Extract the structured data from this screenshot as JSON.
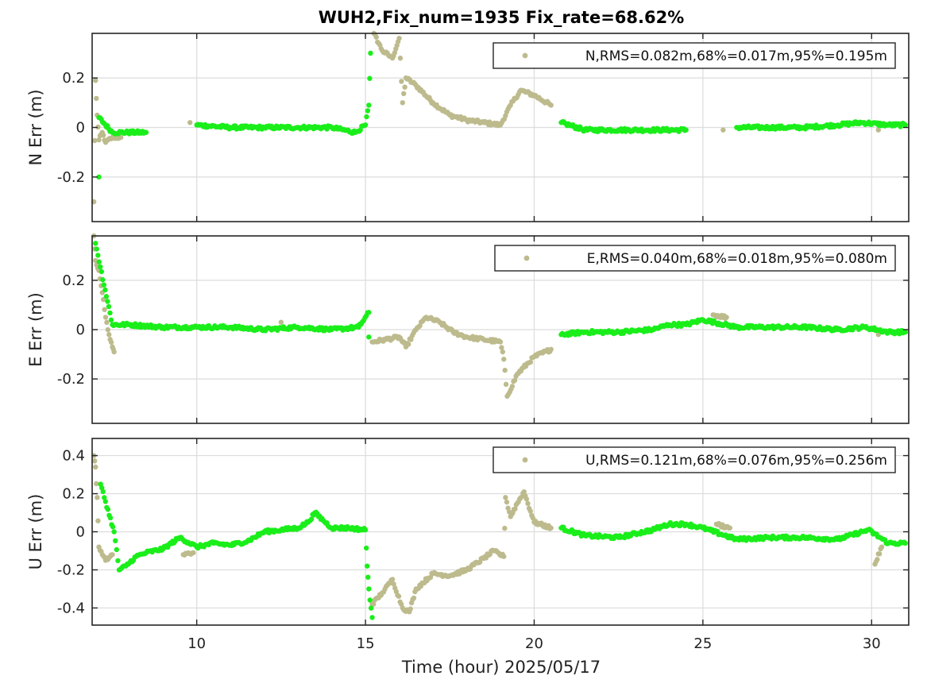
{
  "figure": {
    "title": "WUH2,Fix_num=1935 Fix_rate=68.62%",
    "xlabel": "Time (hour)  2025/05/17"
  },
  "colors": {
    "fixed": "#1aee1a",
    "float": "#bdbb8d",
    "grid": "#dcdcdc",
    "axis": "#262626"
  },
  "chart_data": [
    {
      "type": "scatter",
      "ylabel": "N Err (m)",
      "xlim": [
        6.9,
        31.1
      ],
      "ylim": [
        -0.38,
        0.38
      ],
      "xticks": [
        10,
        15,
        20,
        25,
        30
      ],
      "xtick_labels": [
        "10",
        "15",
        "20",
        "25",
        "30"
      ],
      "yticks": [
        -0.2,
        0,
        0.2
      ],
      "ytick_labels": [
        "-0.2",
        "0",
        "0.2"
      ],
      "grid": true,
      "legend_position": "top-right",
      "legend": "N,RMS=0.082m,68%=0.017m,95%=0.195m",
      "series": [
        {
          "status": "float",
          "points": [
            [
              6.95,
              -0.3
            ],
            [
              7.0,
              0.19
            ],
            [
              7.05,
              0.05
            ],
            [
              7.1,
              -0.05
            ],
            [
              7.2,
              -0.02
            ],
            [
              7.3,
              -0.06
            ],
            [
              7.5,
              -0.04
            ],
            [
              7.75,
              -0.04
            ],
            [
              9.8,
              0.02
            ],
            [
              15.25,
              0.38
            ],
            [
              15.5,
              0.31
            ],
            [
              15.8,
              0.28
            ],
            [
              16.0,
              0.36
            ],
            [
              16.1,
              0.1
            ],
            [
              16.2,
              0.2
            ],
            [
              16.5,
              0.17
            ],
            [
              17.0,
              0.1
            ],
            [
              17.5,
              0.05
            ],
            [
              18.0,
              0.03
            ],
            [
              18.5,
              0.02
            ],
            [
              19.0,
              0.01
            ],
            [
              19.3,
              0.09
            ],
            [
              19.6,
              0.15
            ],
            [
              20.0,
              0.13
            ],
            [
              20.5,
              0.09
            ],
            [
              25.6,
              -0.01
            ],
            [
              30.2,
              -0.01
            ]
          ]
        },
        {
          "status": "fixed",
          "points": [
            [
              7.1,
              -0.2
            ],
            [
              7.1,
              0.04
            ],
            [
              7.5,
              -0.02
            ],
            [
              8.5,
              -0.02
            ],
            [
              10.0,
              0.01
            ],
            [
              11.0,
              0.0
            ],
            [
              12.0,
              0.0
            ],
            [
              13.0,
              0.0
            ],
            [
              14.0,
              0.0
            ],
            [
              14.7,
              -0.02
            ],
            [
              15.0,
              0.01
            ],
            [
              15.1,
              0.09
            ],
            [
              15.15,
              0.3
            ],
            [
              20.8,
              0.02
            ],
            [
              21.5,
              -0.01
            ],
            [
              22.5,
              -0.01
            ],
            [
              23.5,
              -0.01
            ],
            [
              24.5,
              -0.01
            ],
            [
              26.0,
              0.0
            ],
            [
              27.0,
              0.0
            ],
            [
              28.0,
              0.0
            ],
            [
              29.0,
              0.01
            ],
            [
              29.7,
              0.02
            ],
            [
              30.5,
              0.01
            ],
            [
              31.0,
              0.01
            ]
          ]
        }
      ]
    },
    {
      "type": "scatter",
      "ylabel": "E Err (m)",
      "xlim": [
        6.9,
        31.1
      ],
      "ylim": [
        -0.38,
        0.38
      ],
      "xticks": [
        10,
        15,
        20,
        25,
        30
      ],
      "xtick_labels": [
        "10",
        "15",
        "20",
        "25",
        "30"
      ],
      "yticks": [
        -0.2,
        0,
        0.2
      ],
      "ytick_labels": [
        "-0.2",
        "0",
        "0.2"
      ],
      "grid": true,
      "legend_position": "top-right",
      "legend": "E,RMS=0.040m,68%=0.018m,95%=0.080m",
      "series": [
        {
          "status": "float",
          "points": [
            [
              6.95,
              0.38
            ],
            [
              7.0,
              0.28
            ],
            [
              7.1,
              0.24
            ],
            [
              7.2,
              0.15
            ],
            [
              7.3,
              0.05
            ],
            [
              7.4,
              -0.02
            ],
            [
              7.5,
              -0.07
            ],
            [
              7.55,
              -0.09
            ],
            [
              9.8,
              0.01
            ],
            [
              12.5,
              0.03
            ],
            [
              15.2,
              -0.05
            ],
            [
              15.6,
              -0.04
            ],
            [
              16.0,
              -0.03
            ],
            [
              16.2,
              -0.07
            ],
            [
              16.5,
              0.0
            ],
            [
              16.8,
              0.05
            ],
            [
              17.2,
              0.03
            ],
            [
              17.6,
              -0.01
            ],
            [
              18.0,
              -0.03
            ],
            [
              18.5,
              -0.04
            ],
            [
              19.0,
              -0.05
            ],
            [
              19.1,
              -0.12
            ],
            [
              19.2,
              -0.27
            ],
            [
              19.5,
              -0.18
            ],
            [
              20.0,
              -0.11
            ],
            [
              20.5,
              -0.08
            ],
            [
              25.3,
              0.06
            ],
            [
              25.7,
              0.05
            ],
            [
              30.2,
              -0.02
            ]
          ]
        },
        {
          "status": "fixed",
          "points": [
            [
              7.0,
              0.35
            ],
            [
              7.5,
              0.02
            ],
            [
              8.0,
              0.02
            ],
            [
              9.0,
              0.01
            ],
            [
              10.0,
              0.01
            ],
            [
              11.0,
              0.01
            ],
            [
              12.0,
              0.0
            ],
            [
              13.0,
              0.01
            ],
            [
              14.0,
              0.0
            ],
            [
              14.8,
              0.01
            ],
            [
              15.1,
              0.07
            ],
            [
              15.1,
              -0.03
            ],
            [
              20.8,
              -0.02
            ],
            [
              21.5,
              -0.01
            ],
            [
              22.5,
              -0.01
            ],
            [
              23.5,
              0.0
            ],
            [
              24.0,
              0.02
            ],
            [
              24.5,
              0.02
            ],
            [
              25.0,
              0.04
            ],
            [
              26.0,
              0.01
            ],
            [
              27.0,
              0.01
            ],
            [
              28.0,
              0.01
            ],
            [
              29.0,
              0.0
            ],
            [
              29.8,
              0.01
            ],
            [
              30.5,
              -0.01
            ],
            [
              31.0,
              -0.01
            ]
          ]
        }
      ]
    },
    {
      "type": "scatter",
      "ylabel": "U Err (m)",
      "xlim": [
        6.9,
        31.1
      ],
      "ylim": [
        -0.49,
        0.49
      ],
      "xticks": [
        10,
        15,
        20,
        25,
        30
      ],
      "xtick_labels": [
        "10",
        "15",
        "20",
        "25",
        "30"
      ],
      "yticks": [
        -0.4,
        -0.2,
        0,
        0.2,
        0.4
      ],
      "ytick_labels": [
        "-0.4",
        "-0.2",
        "0",
        "0.2",
        "0.4"
      ],
      "grid": true,
      "legend_position": "top-right",
      "legend": "U,RMS=0.121m,68%=0.076m,95%=0.256m",
      "series": [
        {
          "status": "float",
          "points": [
            [
              6.95,
              0.4
            ],
            [
              7.0,
              0.34
            ],
            [
              7.05,
              0.18
            ],
            [
              7.1,
              -0.08
            ],
            [
              7.2,
              -0.12
            ],
            [
              7.3,
              -0.15
            ],
            [
              7.5,
              -0.12
            ],
            [
              9.6,
              -0.12
            ],
            [
              9.9,
              -0.11
            ],
            [
              15.2,
              -0.38
            ],
            [
              15.5,
              -0.32
            ],
            [
              15.8,
              -0.25
            ],
            [
              16.1,
              -0.4
            ],
            [
              16.3,
              -0.42
            ],
            [
              16.5,
              -0.3
            ],
            [
              17.0,
              -0.22
            ],
            [
              17.5,
              -0.23
            ],
            [
              18.0,
              -0.2
            ],
            [
              18.5,
              -0.14
            ],
            [
              18.8,
              -0.1
            ],
            [
              19.1,
              -0.13
            ],
            [
              19.15,
              0.18
            ],
            [
              19.3,
              0.08
            ],
            [
              19.5,
              0.15
            ],
            [
              19.7,
              0.21
            ],
            [
              20.0,
              0.05
            ],
            [
              20.5,
              0.02
            ],
            [
              25.4,
              0.04
            ],
            [
              25.8,
              0.02
            ],
            [
              30.1,
              -0.17
            ],
            [
              30.3,
              -0.08
            ]
          ]
        },
        {
          "status": "fixed",
          "points": [
            [
              7.15,
              0.25
            ],
            [
              7.55,
              0.0
            ],
            [
              7.7,
              -0.2
            ],
            [
              7.9,
              -0.18
            ],
            [
              8.2,
              -0.13
            ],
            [
              8.5,
              -0.11
            ],
            [
              9.0,
              -0.09
            ],
            [
              9.5,
              -0.03
            ],
            [
              10.0,
              -0.08
            ],
            [
              10.5,
              -0.06
            ],
            [
              11.0,
              -0.07
            ],
            [
              11.5,
              -0.05
            ],
            [
              12.0,
              0.0
            ],
            [
              12.5,
              0.01
            ],
            [
              13.0,
              0.02
            ],
            [
              13.3,
              0.05
            ],
            [
              13.5,
              0.1
            ],
            [
              14.0,
              0.02
            ],
            [
              14.5,
              0.02
            ],
            [
              15.0,
              0.01
            ],
            [
              15.05,
              -0.18
            ],
            [
              15.1,
              -0.3
            ],
            [
              15.2,
              -0.45
            ],
            [
              20.8,
              0.02
            ],
            [
              21.5,
              -0.02
            ],
            [
              22.5,
              -0.03
            ],
            [
              23.5,
              0.01
            ],
            [
              24.0,
              0.04
            ],
            [
              24.5,
              0.04
            ],
            [
              25.0,
              0.02
            ],
            [
              26.0,
              -0.04
            ],
            [
              27.0,
              -0.03
            ],
            [
              28.0,
              -0.03
            ],
            [
              29.0,
              -0.04
            ],
            [
              29.9,
              0.01
            ],
            [
              30.5,
              -0.06
            ],
            [
              31.0,
              -0.06
            ]
          ]
        }
      ]
    }
  ]
}
